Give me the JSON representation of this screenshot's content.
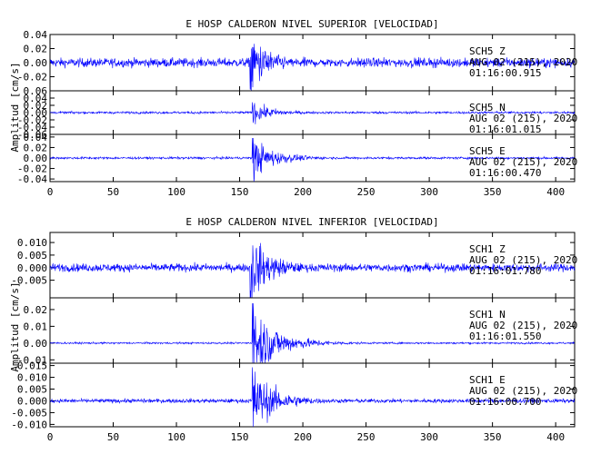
{
  "chart_data": [
    {
      "type": "line",
      "title": "E HOSP CALDERON NIVEL SUPERIOR [VELOCIDAD]",
      "ylabel": "Amplitud [cm/s]",
      "xlim": [
        0,
        415
      ],
      "xticks": [
        "0",
        "50",
        "100",
        "150",
        "200",
        "250",
        "300",
        "350",
        "400"
      ],
      "traces": [
        {
          "station": "SCH5",
          "component": "Z",
          "date": "AUG 02 (215), 2020",
          "time": "01:16:00.915",
          "ylim": [
            -0.04,
            0.04
          ],
          "yticks": [
            "0.04",
            "0.02",
            "0.00",
            "-0.02"
          ],
          "noise_amplitude": 0.006,
          "event_onset_s": 158,
          "peak_amplitude": 0.04
        },
        {
          "station": "SCH5",
          "component": "N",
          "date": "AUG 02 (215), 2020",
          "time": "01:16:01.015",
          "ylim": [
            -0.06,
            0.06
          ],
          "yticks": [
            "0.06",
            "0.04",
            "0.02",
            "0.00",
            "-0.02",
            "-0.04",
            "-0.06"
          ],
          "noise_amplitude": 0.003,
          "event_onset_s": 160,
          "peak_amplitude": 0.03
        },
        {
          "station": "SCH5",
          "component": "E",
          "date": "AUG 02 (215), 2020",
          "time": "01:16:00.470",
          "ylim": [
            -0.045,
            0.045
          ],
          "yticks": [
            "0.04",
            "0.02",
            "0.00",
            "-0.02",
            "-0.04"
          ],
          "noise_amplitude": 0.002,
          "event_onset_s": 160,
          "peak_amplitude": 0.04
        }
      ]
    },
    {
      "type": "line",
      "title": "E HOSP CALDERON NIVEL INFERIOR [VELOCIDAD]",
      "ylabel": "Amplitud [cm/s]",
      "xlim": [
        0,
        415
      ],
      "xticks": [
        "0",
        "50",
        "100",
        "150",
        "200",
        "250",
        "300",
        "350",
        "400"
      ],
      "traces": [
        {
          "station": "SCH1",
          "component": "Z",
          "date": "AUG 02 (215), 2020",
          "time": "01:16:01.780",
          "ylim": [
            -0.012,
            0.014
          ],
          "yticks": [
            "0.010",
            "0.005",
            "0.000",
            "-0.005"
          ],
          "noise_amplitude": 0.0015,
          "event_onset_s": 158,
          "peak_amplitude": 0.014
        },
        {
          "station": "SCH1",
          "component": "N",
          "date": "AUG 02 (215), 2020",
          "time": "01:16:01.550",
          "ylim": [
            -0.012,
            0.027
          ],
          "yticks": [
            "0.02",
            "0.01",
            "0.00",
            "-0.01"
          ],
          "noise_amplitude": 0.0005,
          "event_onset_s": 160,
          "peak_amplitude": 0.025
        },
        {
          "station": "SCH1",
          "component": "E",
          "date": "AUG 02 (215), 2020",
          "time": "01:16:00.700",
          "ylim": [
            -0.011,
            0.016
          ],
          "yticks": [
            "0.015",
            "0.010",
            "0.005",
            "0.000",
            "-0.005",
            "-0.010"
          ],
          "noise_amplitude": 0.0008,
          "event_onset_s": 160,
          "peak_amplitude": 0.015
        }
      ]
    }
  ],
  "colors": {
    "trace": "#0000ff",
    "axis": "#000000",
    "background": "#ffffff"
  }
}
